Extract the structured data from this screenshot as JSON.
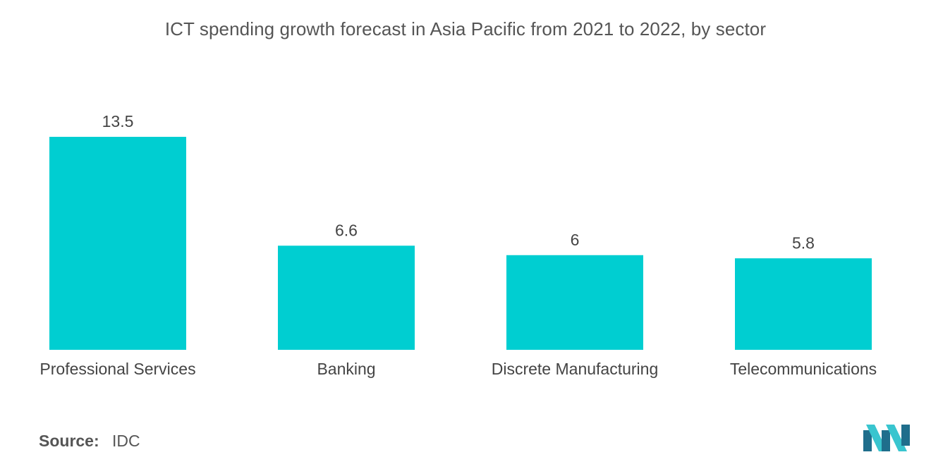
{
  "chart_data": {
    "type": "bar",
    "title": "ICT spending growth forecast in Asia Pacific from 2021 to 2022, by sector",
    "categories": [
      "Professional Services",
      "Banking",
      "Discrete Manufacturing",
      "Telecommunications"
    ],
    "values": [
      13.5,
      6.6,
      6,
      5.8
    ],
    "value_labels": [
      "13.5",
      "6.6",
      "6",
      "5.8"
    ],
    "xlabel": "",
    "ylabel": "",
    "ylim": [
      0,
      13.5
    ],
    "grid": false,
    "legend": "none",
    "bar_color": "#00ced1"
  },
  "source": {
    "label": "Source:",
    "value": "IDC"
  },
  "logo": {
    "icon": "mordor-intelligence-logo-icon",
    "colors": [
      "#1f6e8c",
      "#39c5cf"
    ]
  }
}
